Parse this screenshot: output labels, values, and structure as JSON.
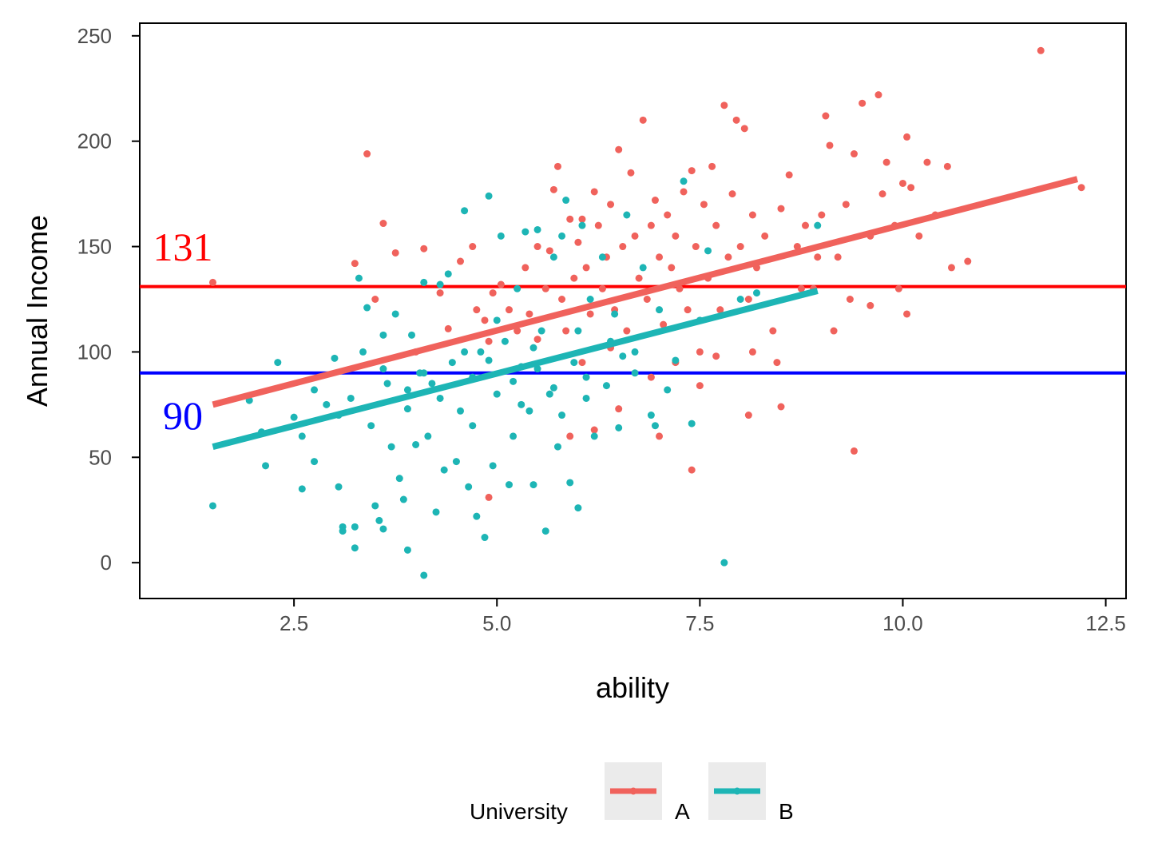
{
  "chart_data": {
    "type": "scatter",
    "xlabel": "ability",
    "ylabel": "Annual Income",
    "xlim": [
      0.6,
      12.75
    ],
    "ylim": [
      -17,
      256
    ],
    "xticks": [
      2.5,
      5.0,
      7.5,
      10.0,
      12.5
    ],
    "xtick_labels": [
      "2.5",
      "5.0",
      "7.5",
      "10.0",
      "12.5"
    ],
    "yticks": [
      0,
      50,
      100,
      150,
      200,
      250
    ],
    "ytick_labels": [
      "0",
      "50",
      "100",
      "150",
      "200",
      "250"
    ],
    "grid": false,
    "legend": {
      "title": "University",
      "placement": "bottom",
      "entries": [
        {
          "label": "A",
          "color": "#F0625C"
        },
        {
          "label": "B",
          "color": "#1DB5B5"
        }
      ]
    },
    "reference_lines": [
      {
        "y": 131,
        "color": "#FF0000",
        "label": "131"
      },
      {
        "y": 90,
        "color": "#0000FF",
        "label": "90"
      }
    ],
    "series": [
      {
        "name": "A",
        "color": "#F0625C",
        "fit_line": {
          "x": [
            1.5,
            12.15
          ],
          "y": [
            75,
            182
          ]
        },
        "points": [
          [
            1.5,
            133
          ],
          [
            3.25,
            142
          ],
          [
            3.4,
            194
          ],
          [
            3.6,
            161
          ],
          [
            3.75,
            147
          ],
          [
            4.1,
            149
          ],
          [
            4.3,
            128
          ],
          [
            4.55,
            143
          ],
          [
            4.7,
            150
          ],
          [
            4.75,
            120
          ],
          [
            4.85,
            115
          ],
          [
            4.9,
            105
          ],
          [
            4.95,
            128
          ],
          [
            5.05,
            132
          ],
          [
            5.15,
            120
          ],
          [
            5.25,
            110
          ],
          [
            5.35,
            140
          ],
          [
            5.4,
            118
          ],
          [
            5.5,
            150
          ],
          [
            5.6,
            130
          ],
          [
            5.65,
            148
          ],
          [
            5.7,
            177
          ],
          [
            5.75,
            188
          ],
          [
            5.8,
            125
          ],
          [
            5.85,
            110
          ],
          [
            5.9,
            163
          ],
          [
            5.95,
            135
          ],
          [
            6.0,
            152
          ],
          [
            6.05,
            163
          ],
          [
            6.1,
            140
          ],
          [
            6.15,
            118
          ],
          [
            6.2,
            176
          ],
          [
            6.25,
            160
          ],
          [
            6.3,
            130
          ],
          [
            6.35,
            145
          ],
          [
            6.4,
            170
          ],
          [
            6.45,
            120
          ],
          [
            6.5,
            196
          ],
          [
            6.55,
            150
          ],
          [
            6.6,
            110
          ],
          [
            6.65,
            185
          ],
          [
            6.7,
            155
          ],
          [
            6.75,
            135
          ],
          [
            6.8,
            210
          ],
          [
            6.85,
            125
          ],
          [
            6.9,
            160
          ],
          [
            6.95,
            172
          ],
          [
            7.0,
            145
          ],
          [
            7.05,
            113
          ],
          [
            7.1,
            165
          ],
          [
            7.15,
            140
          ],
          [
            7.2,
            155
          ],
          [
            7.25,
            130
          ],
          [
            7.3,
            176
          ],
          [
            7.35,
            120
          ],
          [
            7.4,
            186
          ],
          [
            7.45,
            150
          ],
          [
            7.5,
            100
          ],
          [
            7.55,
            170
          ],
          [
            7.6,
            135
          ],
          [
            7.65,
            188
          ],
          [
            7.7,
            160
          ],
          [
            7.75,
            120
          ],
          [
            7.8,
            217
          ],
          [
            7.85,
            145
          ],
          [
            7.9,
            175
          ],
          [
            7.95,
            210
          ],
          [
            8.0,
            150
          ],
          [
            8.05,
            206
          ],
          [
            8.1,
            125
          ],
          [
            8.15,
            165
          ],
          [
            8.2,
            140
          ],
          [
            8.3,
            155
          ],
          [
            8.4,
            110
          ],
          [
            8.5,
            168
          ],
          [
            8.6,
            184
          ],
          [
            8.7,
            150
          ],
          [
            8.8,
            160
          ],
          [
            8.9,
            130
          ],
          [
            9.0,
            165
          ],
          [
            9.05,
            212
          ],
          [
            9.1,
            198
          ],
          [
            9.2,
            145
          ],
          [
            9.3,
            170
          ],
          [
            9.4,
            194
          ],
          [
            9.5,
            218
          ],
          [
            9.6,
            155
          ],
          [
            9.7,
            222
          ],
          [
            9.75,
            175
          ],
          [
            9.8,
            190
          ],
          [
            9.9,
            160
          ],
          [
            10.0,
            180
          ],
          [
            10.05,
            202
          ],
          [
            10.1,
            178
          ],
          [
            10.2,
            155
          ],
          [
            10.3,
            190
          ],
          [
            10.4,
            165
          ],
          [
            10.55,
            188
          ],
          [
            10.6,
            140
          ],
          [
            10.8,
            143
          ],
          [
            11.7,
            243
          ],
          [
            12.2,
            178
          ],
          [
            9.4,
            53
          ],
          [
            8.5,
            74
          ],
          [
            8.1,
            70
          ],
          [
            7.4,
            44
          ],
          [
            4.9,
            31
          ],
          [
            7.0,
            60
          ],
          [
            7.5,
            84
          ],
          [
            6.5,
            73
          ],
          [
            5.9,
            60
          ],
          [
            6.2,
            63
          ],
          [
            4.0,
            100
          ],
          [
            3.5,
            125
          ],
          [
            4.4,
            111
          ],
          [
            5.5,
            106
          ],
          [
            6.05,
            95
          ],
          [
            6.4,
            102
          ],
          [
            6.9,
            88
          ],
          [
            7.2,
            95
          ],
          [
            7.7,
            98
          ],
          [
            8.15,
            100
          ],
          [
            8.45,
            95
          ],
          [
            9.15,
            110
          ],
          [
            9.35,
            125
          ],
          [
            9.6,
            122
          ],
          [
            9.95,
            130
          ],
          [
            10.05,
            118
          ],
          [
            8.75,
            130
          ],
          [
            8.95,
            145
          ]
        ]
      },
      {
        "name": "B",
        "color": "#1DB5B5",
        "fit_line": {
          "x": [
            1.5,
            8.95
          ],
          "y": [
            55,
            129
          ]
        },
        "points": [
          [
            1.5,
            27
          ],
          [
            1.95,
            77
          ],
          [
            2.1,
            62
          ],
          [
            2.15,
            46
          ],
          [
            2.3,
            95
          ],
          [
            2.5,
            69
          ],
          [
            2.6,
            60
          ],
          [
            2.6,
            35
          ],
          [
            2.75,
            82
          ],
          [
            2.75,
            48
          ],
          [
            2.9,
            75
          ],
          [
            3.0,
            97
          ],
          [
            3.05,
            70
          ],
          [
            3.05,
            36
          ],
          [
            3.1,
            17
          ],
          [
            3.1,
            15
          ],
          [
            3.2,
            78
          ],
          [
            3.25,
            17
          ],
          [
            3.25,
            7
          ],
          [
            3.3,
            135
          ],
          [
            3.35,
            100
          ],
          [
            3.4,
            121
          ],
          [
            3.45,
            65
          ],
          [
            3.5,
            27
          ],
          [
            3.55,
            20
          ],
          [
            3.6,
            108
          ],
          [
            3.6,
            16
          ],
          [
            3.65,
            85
          ],
          [
            3.7,
            55
          ],
          [
            3.75,
            118
          ],
          [
            3.8,
            40
          ],
          [
            3.85,
            30
          ],
          [
            3.9,
            73
          ],
          [
            3.9,
            6
          ],
          [
            3.95,
            108
          ],
          [
            4.0,
            56
          ],
          [
            4.05,
            90
          ],
          [
            4.1,
            -6
          ],
          [
            4.1,
            133
          ],
          [
            4.15,
            60
          ],
          [
            4.2,
            85
          ],
          [
            4.25,
            24
          ],
          [
            4.3,
            132
          ],
          [
            4.35,
            44
          ],
          [
            4.4,
            137
          ],
          [
            4.45,
            95
          ],
          [
            4.5,
            48
          ],
          [
            4.55,
            72
          ],
          [
            4.6,
            167
          ],
          [
            4.65,
            36
          ],
          [
            4.7,
            65
          ],
          [
            4.75,
            22
          ],
          [
            4.8,
            100
          ],
          [
            4.85,
            12
          ],
          [
            4.9,
            174
          ],
          [
            4.95,
            46
          ],
          [
            5.0,
            80
          ],
          [
            5.05,
            155
          ],
          [
            5.1,
            105
          ],
          [
            5.15,
            37
          ],
          [
            5.2,
            60
          ],
          [
            5.25,
            130
          ],
          [
            5.3,
            93
          ],
          [
            5.35,
            157
          ],
          [
            5.4,
            72
          ],
          [
            5.45,
            37
          ],
          [
            5.5,
            158
          ],
          [
            5.55,
            110
          ],
          [
            5.6,
            15
          ],
          [
            5.65,
            80
          ],
          [
            5.7,
            145
          ],
          [
            5.75,
            55
          ],
          [
            5.8,
            155
          ],
          [
            5.85,
            172
          ],
          [
            5.9,
            38
          ],
          [
            5.95,
            95
          ],
          [
            6.0,
            26
          ],
          [
            6.05,
            160
          ],
          [
            6.1,
            78
          ],
          [
            6.15,
            125
          ],
          [
            6.2,
            60
          ],
          [
            6.3,
            145
          ],
          [
            6.35,
            84
          ],
          [
            6.45,
            118
          ],
          [
            6.5,
            64
          ],
          [
            6.6,
            165
          ],
          [
            6.7,
            100
          ],
          [
            6.8,
            140
          ],
          [
            6.9,
            70
          ],
          [
            6.95,
            65
          ],
          [
            7.0,
            120
          ],
          [
            7.1,
            82
          ],
          [
            7.2,
            96
          ],
          [
            7.3,
            181
          ],
          [
            7.4,
            66
          ],
          [
            7.5,
            115
          ],
          [
            7.6,
            148
          ],
          [
            7.8,
            0
          ],
          [
            8.0,
            125
          ],
          [
            8.2,
            128
          ],
          [
            8.95,
            160
          ],
          [
            4.1,
            90
          ],
          [
            4.6,
            100
          ],
          [
            5.0,
            115
          ],
          [
            5.2,
            86
          ],
          [
            5.5,
            92
          ],
          [
            5.8,
            70
          ],
          [
            6.1,
            88
          ],
          [
            6.4,
            105
          ],
          [
            6.7,
            90
          ],
          [
            4.3,
            78
          ],
          [
            4.7,
            88
          ],
          [
            5.3,
            75
          ],
          [
            5.7,
            83
          ],
          [
            3.9,
            82
          ],
          [
            3.6,
            92
          ],
          [
            4.9,
            96
          ],
          [
            5.45,
            102
          ],
          [
            6.0,
            110
          ],
          [
            6.55,
            98
          ]
        ]
      }
    ]
  }
}
